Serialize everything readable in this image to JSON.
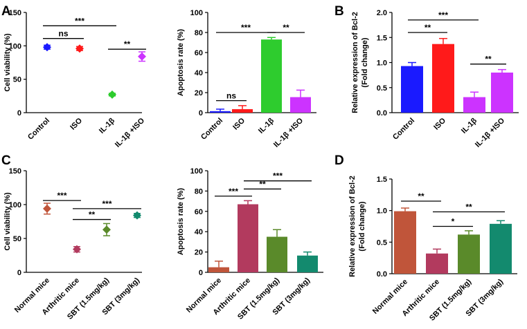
{
  "panel_labels": [
    "A",
    "B",
    "C",
    "D"
  ],
  "chart_data": [
    {
      "id": "A1",
      "type": "scatter",
      "ylabel": "Cell viability (%)",
      "ylim": [
        0,
        150
      ],
      "yticks": [
        0,
        50,
        100,
        150
      ],
      "categories": [
        "Control",
        "ISO",
        "IL-1β",
        "IL-1β +ISO"
      ],
      "colors": [
        "#1a1aff",
        "#ff1a1a",
        "#2ecc2e",
        "#cc33ff"
      ],
      "values": [
        98,
        96,
        27,
        84
      ],
      "errors": [
        3,
        3,
        2,
        7
      ],
      "annotations": [
        {
          "from": 0,
          "to": 2,
          "y": 130,
          "text": "***"
        },
        {
          "from": 0,
          "to": 1,
          "y": 111,
          "text": "ns"
        },
        {
          "from": 2,
          "to": 3,
          "y": 95,
          "text": "**"
        }
      ]
    },
    {
      "id": "A2",
      "type": "bar",
      "ylabel": "Apoptosis rate (%)",
      "ylim": [
        0,
        100
      ],
      "yticks": [
        0,
        20,
        40,
        60,
        80,
        100
      ],
      "categories": [
        "Control",
        "ISO",
        "IL-1β",
        "IL-1β +ISO"
      ],
      "colors": [
        "#1a1aff",
        "#ff1a1a",
        "#2ecc2e",
        "#cc33ff"
      ],
      "values": [
        1.5,
        3.5,
        73,
        15.5
      ],
      "errors": [
        2,
        3.5,
        2,
        7
      ],
      "annotations": [
        {
          "from": 0,
          "to": 1,
          "y": 12,
          "text": "ns"
        },
        {
          "from": 0,
          "to": 2,
          "y": 80,
          "text": "***"
        },
        {
          "from": 2,
          "to": 3,
          "y": 80,
          "text": "**"
        }
      ]
    },
    {
      "id": "B",
      "type": "bar",
      "ylabel": "Relative expression of Bcl-2",
      "ylabel2": "(Fold change)",
      "ylim": [
        0,
        2.0
      ],
      "yticks": [
        "0.0",
        "0.5",
        "1.0",
        "1.5",
        "2.0"
      ],
      "categories": [
        "Control",
        "ISO",
        "IL-1β",
        "IL-1β +ISO"
      ],
      "colors": [
        "#1a1aff",
        "#ff1a1a",
        "#cc33ff",
        "#cc33ff"
      ],
      "values": [
        0.93,
        1.37,
        0.31,
        0.8
      ],
      "errors": [
        0.07,
        0.11,
        0.1,
        0.06
      ],
      "annotations": [
        {
          "from": 0,
          "to": 2,
          "y": 1.85,
          "text": "***"
        },
        {
          "from": 0,
          "to": 1,
          "y": 1.6,
          "text": "**"
        },
        {
          "from": 2,
          "to": 3,
          "y": 0.97,
          "text": "**"
        }
      ]
    },
    {
      "id": "C1",
      "type": "scatter",
      "ylabel": "Cell viability (%)",
      "ylim": [
        0,
        150
      ],
      "yticks": [
        0,
        50,
        100,
        150
      ],
      "categories": [
        "Normal mice",
        "Arthritic mice",
        "SBT (1.5mg/kg)",
        "SBT (3mg/kg)"
      ],
      "colors": [
        "#c0553a",
        "#b23a5e",
        "#5a8a2a",
        "#138a6e"
      ],
      "values": [
        94,
        34,
        63,
        84
      ],
      "errors": [
        8,
        4,
        9,
        3
      ],
      "annotations": [
        {
          "from": 0,
          "to": 1,
          "y": 106,
          "text": "***"
        },
        {
          "from": 1,
          "to": 3,
          "y": 94,
          "text": "***"
        },
        {
          "from": 1,
          "to": 2,
          "y": 78,
          "text": "**"
        }
      ]
    },
    {
      "id": "C2",
      "type": "bar",
      "ylabel": "Apoptosis rate (%)",
      "ylim": [
        0,
        100
      ],
      "yticks": [
        0,
        20,
        40,
        60,
        80,
        100
      ],
      "categories": [
        "Normal mice",
        "Arthritic mice",
        "SBT (1.5mg/kg)",
        "SBT (3mg/kg)"
      ],
      "colors": [
        "#c0553a",
        "#b23a5e",
        "#5a8a2a",
        "#138a6e"
      ],
      "values": [
        5,
        67,
        35,
        16.5
      ],
      "errors": [
        6,
        3.5,
        7,
        3.5
      ],
      "annotations": [
        {
          "from": 0,
          "to": 1,
          "y": 75,
          "text": "***"
        },
        {
          "from": 1,
          "to": 2,
          "y": 82,
          "text": "**"
        },
        {
          "from": 1,
          "to": 3,
          "y": 90,
          "text": "***"
        }
      ]
    },
    {
      "id": "D",
      "type": "bar",
      "ylabel": "Relative expression of Bcl-2",
      "ylabel2": "(Fold change)",
      "ylim": [
        0,
        1.5
      ],
      "yticks": [
        "0.0",
        "0.5",
        "1.0",
        "1.5"
      ],
      "categories": [
        "Normal mice",
        "Arthritic mice",
        "SBT (1.5mg/kg)",
        "SBT (3mg/kg)"
      ],
      "colors": [
        "#c0553a",
        "#b23a5e",
        "#5a8a2a",
        "#138a6e"
      ],
      "values": [
        0.99,
        0.32,
        0.62,
        0.79
      ],
      "errors": [
        0.05,
        0.07,
        0.06,
        0.05
      ],
      "annotations": [
        {
          "from": 0,
          "to": 1,
          "y": 1.15,
          "text": "**"
        },
        {
          "from": 1,
          "to": 3,
          "y": 0.98,
          "text": "**"
        },
        {
          "from": 1,
          "to": 2,
          "y": 0.75,
          "text": "*"
        }
      ]
    }
  ]
}
